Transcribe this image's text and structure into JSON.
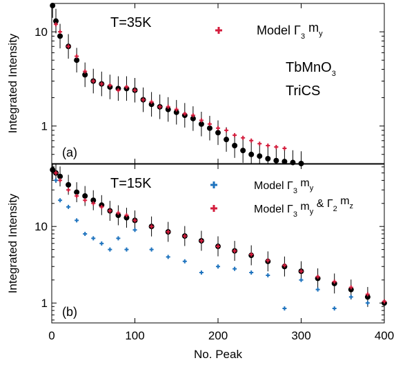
{
  "figure": {
    "x_axis_label": "No. Peak",
    "x_ticks": [
      "0",
      "100",
      "200",
      "300",
      "400"
    ],
    "colors": {
      "measured": "#000000",
      "model_red": "#d41c3c",
      "model_blue": "#1e73be"
    }
  },
  "chart_data": [
    {
      "type": "scatter",
      "panel_label": "(a)",
      "temperature_label": "T=35K",
      "sample_label": "TbMnO",
      "sample_subscript": "3",
      "instrument_label": "TriCS",
      "ylabel": "Integrated Intensity",
      "xlim": [
        0,
        400
      ],
      "ylim": [
        0.4,
        20
      ],
      "y_scale": "log",
      "y_ticks": [
        1,
        10
      ],
      "y_tick_labels": [
        "1",
        "10"
      ],
      "legend": [
        {
          "marker": "+",
          "color": "#d41c3c",
          "text": "Model Γ",
          "sub1": "3",
          "mid": " m",
          "sub2": "y",
          "tail": ""
        }
      ],
      "series": [
        {
          "name": "measured",
          "style": "circles-with-errorbars",
          "color": "#000000",
          "x": [
            1,
            5,
            10,
            20,
            30,
            40,
            50,
            60,
            70,
            80,
            90,
            100,
            110,
            120,
            130,
            140,
            150,
            160,
            170,
            180,
            190,
            200,
            210,
            220,
            230,
            240,
            250,
            260,
            270,
            280,
            290,
            300
          ],
          "y": [
            19,
            13,
            9,
            7,
            5,
            3.5,
            3,
            2.8,
            2.6,
            2.5,
            2.5,
            2.4,
            1.9,
            1.7,
            1.6,
            1.5,
            1.4,
            1.3,
            1.2,
            1.05,
            0.95,
            0.85,
            0.72,
            0.62,
            0.55,
            0.5,
            0.48,
            0.45,
            0.43,
            0.42,
            0.41,
            0.4
          ]
        },
        {
          "name": "Model Γ3 my",
          "style": "plus",
          "color": "#d41c3c",
          "x": [
            5,
            10,
            20,
            30,
            40,
            50,
            60,
            70,
            80,
            90,
            100,
            110,
            120,
            130,
            140,
            150,
            160,
            170,
            180,
            190,
            200,
            210,
            220,
            230,
            240,
            250,
            260,
            270,
            280
          ],
          "y": [
            12,
            10,
            7,
            5.5,
            3.8,
            3,
            2.8,
            2.7,
            2.4,
            2.6,
            2.4,
            1.9,
            1.8,
            1.6,
            1.6,
            1.5,
            1.35,
            1.3,
            1.15,
            1.05,
            0.95,
            0.9,
            0.8,
            0.75,
            0.7,
            0.65,
            0.62,
            0.6,
            0.58
          ]
        }
      ]
    },
    {
      "type": "scatter",
      "panel_label": "(b)",
      "temperature_label": "T=15K",
      "ylabel": "Integrated Intensity",
      "xlim": [
        0,
        400
      ],
      "ylim": [
        0.55,
        65
      ],
      "y_scale": "log",
      "y_ticks": [
        1,
        10
      ],
      "y_tick_labels": [
        "1",
        "10"
      ],
      "legend": [
        {
          "marker": "+",
          "color": "#1e73be",
          "text": "Model Γ",
          "sub1": "3",
          "mid": " m",
          "sub2": "y",
          "tail": ""
        },
        {
          "marker": "+",
          "color": "#d41c3c",
          "text": "Model Γ",
          "sub1": "3",
          "mid": " m",
          "sub2": "y",
          "tail": " & Γ",
          "sub3": "2",
          "mid2": " m",
          "sub4": "z"
        }
      ],
      "series": [
        {
          "name": "measured",
          "style": "circles-with-errorbars",
          "color": "#000000",
          "x": [
            1,
            5,
            10,
            20,
            30,
            40,
            50,
            60,
            70,
            80,
            90,
            100,
            120,
            140,
            160,
            180,
            200,
            220,
            240,
            260,
            280,
            300,
            320,
            340,
            360,
            380,
            400
          ],
          "y": [
            55,
            50,
            45,
            35,
            28,
            25,
            22,
            19,
            16,
            14,
            13,
            12,
            10,
            8.5,
            7.5,
            6.5,
            5.5,
            4.8,
            4.2,
            3.5,
            3,
            2.6,
            2.1,
            1.8,
            1.5,
            1.2,
            1
          ]
        },
        {
          "name": "Model Γ3 my",
          "style": "plus",
          "color": "#1e73be",
          "x": [
            5,
            10,
            20,
            30,
            40,
            50,
            60,
            70,
            80,
            90,
            100,
            120,
            140,
            160,
            180,
            200,
            220,
            240,
            260,
            280,
            300,
            320,
            340,
            360,
            380
          ],
          "y": [
            40,
            22,
            18,
            12,
            8,
            7,
            6,
            5,
            7,
            5,
            9,
            5,
            4,
            3.5,
            2.5,
            3,
            2.8,
            2.5,
            2.3,
            0.85,
            2,
            1.5,
            0.85,
            1.2,
            1
          ]
        },
        {
          "name": "Model Γ3 my & Γ2 mz",
          "style": "plus",
          "color": "#d41c3c",
          "x": [
            5,
            10,
            20,
            30,
            40,
            50,
            60,
            70,
            80,
            90,
            100,
            120,
            140,
            160,
            180,
            200,
            220,
            240,
            260,
            280,
            300,
            320,
            340,
            360,
            380,
            400
          ],
          "y": [
            50,
            40,
            30,
            25,
            22,
            20,
            18,
            16,
            15,
            14,
            12,
            10,
            8.5,
            7.5,
            6.5,
            5.5,
            4.8,
            4.3,
            3.6,
            3.1,
            2.6,
            2.2,
            1.9,
            1.6,
            1.3,
            1.05
          ]
        }
      ]
    }
  ]
}
